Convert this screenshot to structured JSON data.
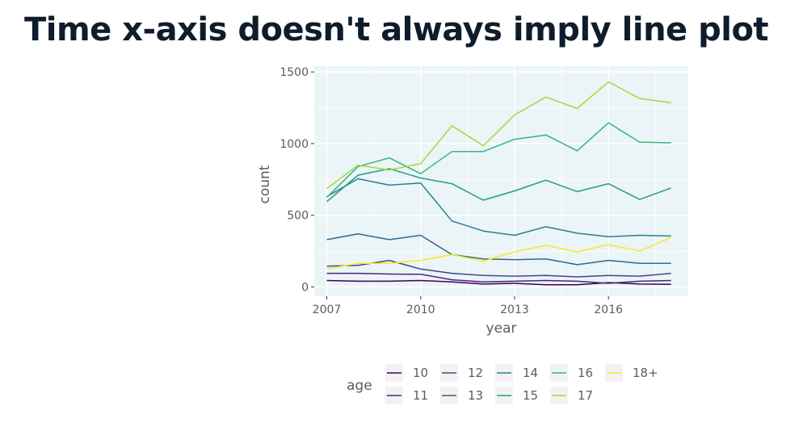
{
  "title": "Time x-axis doesn't always imply line plot",
  "colors": {
    "background": "#ffffff",
    "panel": "#ebf4f6",
    "grid": "#ffffff",
    "text": "#0f1c2b",
    "axis_text": "#5c5c5c",
    "legend_key_bg": "#f2f2f2"
  },
  "chart_data": {
    "type": "line",
    "xlabel": "year",
    "ylabel": "count",
    "xlim": [
      2007,
      2018
    ],
    "ylim": [
      0,
      1500
    ],
    "x_ticks": [
      2007,
      2010,
      2013,
      2016
    ],
    "y_ticks": [
      0,
      500,
      1000,
      1500
    ],
    "grid": true,
    "legend_title": "age",
    "legend_position": "bottom",
    "x": [
      2007,
      2008,
      2009,
      2010,
      2011,
      2012,
      2013,
      2014,
      2015,
      2016,
      2017,
      2018
    ],
    "series": [
      {
        "name": "10",
        "color": "#440154",
        "values": [
          45,
          40,
          40,
          45,
          35,
          20,
          25,
          15,
          15,
          30,
          20,
          18
        ]
      },
      {
        "name": "11",
        "color": "#482878",
        "values": [
          95,
          95,
          90,
          88,
          50,
          35,
          40,
          45,
          40,
          25,
          40,
          45
        ]
      },
      {
        "name": "12",
        "color": "#3e4989",
        "values": [
          145,
          150,
          185,
          125,
          95,
          80,
          75,
          80,
          70,
          80,
          75,
          95
        ]
      },
      {
        "name": "13",
        "color": "#31688e",
        "values": [
          330,
          370,
          330,
          360,
          225,
          195,
          190,
          195,
          155,
          185,
          165,
          165
        ]
      },
      {
        "name": "14",
        "color": "#26828e",
        "values": [
          630,
          755,
          710,
          725,
          460,
          390,
          360,
          420,
          375,
          350,
          360,
          355
        ]
      },
      {
        "name": "15",
        "color": "#1f9e89",
        "values": [
          595,
          780,
          825,
          760,
          720,
          605,
          670,
          745,
          665,
          720,
          610,
          690
        ]
      },
      {
        "name": "16",
        "color": "#35b779",
        "values": [
          625,
          840,
          900,
          790,
          945,
          945,
          1030,
          1060,
          950,
          1145,
          1010,
          1005
        ]
      },
      {
        "name": "17",
        "color": "#a0da39",
        "values": [
          685,
          850,
          815,
          860,
          1125,
          985,
          1200,
          1325,
          1245,
          1430,
          1315,
          1285
        ]
      },
      {
        "name": "18+",
        "color": "#fde725",
        "values": [
          125,
          165,
          165,
          185,
          225,
          180,
          245,
          290,
          245,
          295,
          250,
          345
        ]
      }
    ]
  }
}
